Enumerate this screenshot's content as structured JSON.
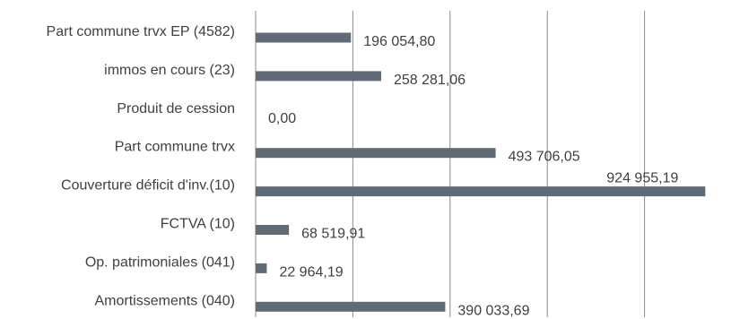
{
  "chart_data": {
    "type": "bar",
    "orientation": "horizontal",
    "categories": [
      "Part commune trvx EP (4582)",
      "immos en cours (23)",
      "Produit de cession",
      "Part commune trvx ",
      "Couverture déficit d'inv.(10)",
      "FCTVA (10)",
      "Op. patrimoniales (041)",
      "Amortissements (040)"
    ],
    "values": [
      196054.8,
      258281.06,
      0.0,
      493706.05,
      924955.19,
      68519.91,
      22964.19,
      390033.69
    ],
    "value_labels": [
      "196 054,80",
      "258 281,06",
      "0,00",
      "493 706,05",
      "924 955,19",
      "68 519,91",
      "22 964,19",
      "390 033,69"
    ],
    "xlim": [
      0,
      1000000
    ],
    "x_gridlines": [
      0,
      200000,
      400000,
      600000,
      800000
    ],
    "grid": true,
    "legend": "none",
    "colors": {
      "bar": "#5f6b77",
      "grid": "#8c8c8c",
      "text": "#404040"
    }
  }
}
